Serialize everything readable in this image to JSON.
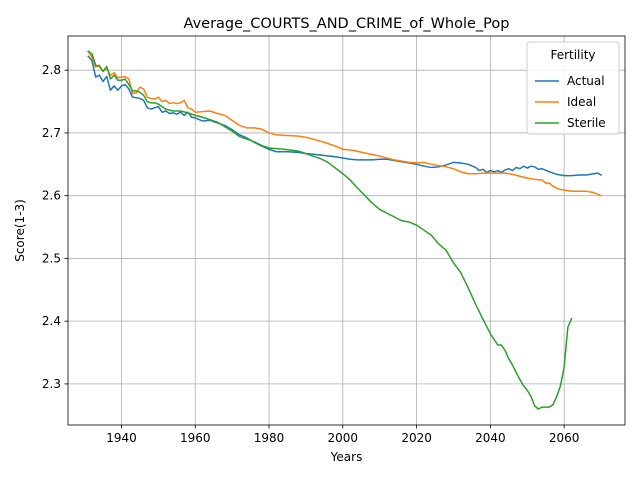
{
  "chart_data": {
    "type": "line",
    "title": "Average_COURTS_AND_CRIME_of_Whole_Pop",
    "xlabel": "Years",
    "ylabel": "Score(1-3)",
    "xlim": [
      1925.5,
      2076.5
    ],
    "ylim": [
      2.2345,
      2.8545
    ],
    "xticks": [
      1940,
      1960,
      1980,
      2000,
      2020,
      2040,
      2060
    ],
    "yticks": [
      2.3,
      2.4,
      2.5,
      2.6,
      2.7,
      2.8
    ],
    "ytick_labels": [
      "2.3",
      "2.4",
      "2.5",
      "2.6",
      "2.7",
      "2.8"
    ],
    "grid": true,
    "legend": {
      "title": "Fertility",
      "placement": "upper right"
    },
    "series": [
      {
        "name": "Actual",
        "color": "#1f77b4",
        "x": [
          1931,
          1932,
          1933,
          1934,
          1935,
          1936,
          1937,
          1938,
          1939,
          1940,
          1941,
          1942,
          1943,
          1944,
          1945,
          1946,
          1947,
          1948,
          1949,
          1950,
          1951,
          1952,
          1953,
          1954,
          1955,
          1956,
          1957,
          1958,
          1959,
          1960,
          1962,
          1964,
          1966,
          1968,
          1970,
          1972,
          1974,
          1976,
          1978,
          1980,
          1982,
          1985,
          1988,
          1990,
          1992,
          1995,
          1998,
          2000,
          2002,
          2004,
          2006,
          2008,
          2010,
          2012,
          2015,
          2018,
          2020,
          2022,
          2024,
          2026,
          2028,
          2030,
          2032,
          2034,
          2036,
          2037,
          2038,
          2039,
          2040,
          2041,
          2042,
          2043,
          2044,
          2045,
          2046,
          2047,
          2048,
          2049,
          2050,
          2051,
          2052,
          2053,
          2054,
          2056,
          2058,
          2060,
          2062,
          2064,
          2066,
          2068,
          2069,
          2070
        ],
        "y": [
          2.822,
          2.815,
          2.789,
          2.792,
          2.782,
          2.79,
          2.768,
          2.775,
          2.768,
          2.775,
          2.777,
          2.77,
          2.757,
          2.756,
          2.755,
          2.752,
          2.74,
          2.738,
          2.74,
          2.742,
          2.733,
          2.735,
          2.731,
          2.732,
          2.73,
          2.733,
          2.728,
          2.733,
          2.725,
          2.724,
          2.719,
          2.72,
          2.716,
          2.712,
          2.705,
          2.697,
          2.692,
          2.685,
          2.679,
          2.674,
          2.67,
          2.67,
          2.669,
          2.667,
          2.666,
          2.664,
          2.662,
          2.66,
          2.658,
          2.657,
          2.657,
          2.657,
          2.658,
          2.658,
          2.655,
          2.652,
          2.65,
          2.647,
          2.645,
          2.646,
          2.649,
          2.653,
          2.652,
          2.65,
          2.645,
          2.64,
          2.642,
          2.637,
          2.64,
          2.638,
          2.64,
          2.637,
          2.641,
          2.643,
          2.64,
          2.645,
          2.643,
          2.647,
          2.644,
          2.647,
          2.646,
          2.642,
          2.643,
          2.638,
          2.634,
          2.632,
          2.632,
          2.633,
          2.633,
          2.635,
          2.636,
          2.633
        ]
      },
      {
        "name": "Ideal",
        "color": "#ff7f0e",
        "x": [
          1931,
          1932,
          1933,
          1934,
          1935,
          1936,
          1937,
          1938,
          1939,
          1940,
          1941,
          1942,
          1943,
          1944,
          1945,
          1946,
          1947,
          1948,
          1949,
          1950,
          1951,
          1952,
          1953,
          1954,
          1955,
          1956,
          1957,
          1958,
          1959,
          1960,
          1962,
          1964,
          1966,
          1968,
          1970,
          1972,
          1974,
          1976,
          1978,
          1980,
          1982,
          1985,
          1988,
          1990,
          1992,
          1995,
          1998,
          2000,
          2003,
          2006,
          2010,
          2014,
          2018,
          2020,
          2022,
          2024,
          2026,
          2028,
          2030,
          2032,
          2034,
          2036,
          2038,
          2040,
          2042,
          2044,
          2046,
          2048,
          2050,
          2052,
          2054,
          2055,
          2056,
          2057,
          2058,
          2059,
          2060,
          2062,
          2064,
          2066,
          2068,
          2070
        ],
        "y": [
          2.83,
          2.82,
          2.805,
          2.808,
          2.798,
          2.803,
          2.792,
          2.796,
          2.788,
          2.789,
          2.79,
          2.786,
          2.763,
          2.764,
          2.773,
          2.77,
          2.757,
          2.755,
          2.754,
          2.757,
          2.75,
          2.752,
          2.747,
          2.748,
          2.747,
          2.748,
          2.752,
          2.74,
          2.738,
          2.733,
          2.734,
          2.735,
          2.731,
          2.728,
          2.72,
          2.712,
          2.708,
          2.708,
          2.706,
          2.7,
          2.697,
          2.696,
          2.695,
          2.693,
          2.69,
          2.685,
          2.679,
          2.674,
          2.672,
          2.668,
          2.663,
          2.657,
          2.653,
          2.652,
          2.653,
          2.65,
          2.648,
          2.646,
          2.643,
          2.638,
          2.635,
          2.635,
          2.636,
          2.636,
          2.636,
          2.636,
          2.634,
          2.631,
          2.628,
          2.626,
          2.625,
          2.62,
          2.62,
          2.615,
          2.612,
          2.61,
          2.609,
          2.607,
          2.607,
          2.607,
          2.605,
          2.6
        ]
      },
      {
        "name": "Sterile",
        "color": "#2ca02c",
        "x": [
          1931,
          1932,
          1933,
          1934,
          1935,
          1936,
          1937,
          1938,
          1939,
          1940,
          1941,
          1942,
          1943,
          1944,
          1945,
          1946,
          1947,
          1948,
          1949,
          1950,
          1951,
          1952,
          1954,
          1956,
          1958,
          1960,
          1962,
          1964,
          1966,
          1968,
          1970,
          1972,
          1974,
          1976,
          1978,
          1980,
          1984,
          1988,
          1990,
          1992,
          1994,
          1996,
          1998,
          2000,
          2002,
          2004,
          2006,
          2008,
          2010,
          2012,
          2014,
          2016,
          2018,
          2020,
          2022,
          2024,
          2026,
          2028,
          2030,
          2032,
          2034,
          2036,
          2038,
          2040,
          2042,
          2043,
          2044,
          2045,
          2046,
          2047,
          2048,
          2049,
          2050,
          2051,
          2052,
          2053,
          2054,
          2055,
          2056,
          2057,
          2058,
          2059,
          2060,
          2061,
          2062
        ],
        "y": [
          2.83,
          2.826,
          2.808,
          2.806,
          2.798,
          2.806,
          2.786,
          2.792,
          2.784,
          2.784,
          2.786,
          2.777,
          2.767,
          2.767,
          2.765,
          2.76,
          2.75,
          2.748,
          2.748,
          2.746,
          2.742,
          2.738,
          2.735,
          2.735,
          2.732,
          2.728,
          2.725,
          2.721,
          2.717,
          2.71,
          2.703,
          2.694,
          2.69,
          2.686,
          2.68,
          2.676,
          2.674,
          2.671,
          2.667,
          2.663,
          2.659,
          2.653,
          2.644,
          2.635,
          2.625,
          2.612,
          2.6,
          2.588,
          2.578,
          2.572,
          2.566,
          2.56,
          2.558,
          2.553,
          2.545,
          2.537,
          2.523,
          2.513,
          2.493,
          2.477,
          2.453,
          2.427,
          2.403,
          2.38,
          2.362,
          2.362,
          2.353,
          2.34,
          2.33,
          2.318,
          2.307,
          2.297,
          2.29,
          2.28,
          2.265,
          2.26,
          2.263,
          2.263,
          2.263,
          2.267,
          2.28,
          2.297,
          2.327,
          2.39,
          2.404
        ]
      }
    ]
  }
}
